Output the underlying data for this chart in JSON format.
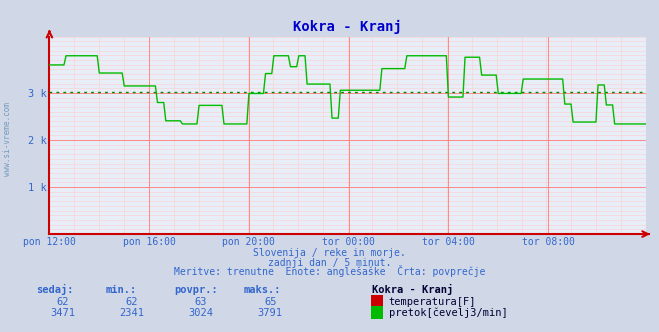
{
  "title": "Kokra - Kranj",
  "title_color": "#0000cc",
  "bg_color": "#d0d8e8",
  "plot_bg_color": "#e8eef8",
  "grid_color_major": "#ff8888",
  "grid_color_minor": "#ffcccc",
  "ylabel_ticks": [
    "1 k",
    "2 k",
    "3 k"
  ],
  "ytick_vals": [
    1000,
    2000,
    3000
  ],
  "ylim": [
    0,
    4200
  ],
  "xlim": [
    0,
    287
  ],
  "x_tick_labels": [
    "pon 12:00",
    "pon 16:00",
    "pon 20:00",
    "tor 00:00",
    "tor 04:00",
    "tor 08:00"
  ],
  "x_tick_positions": [
    0,
    48,
    96,
    144,
    192,
    240
  ],
  "avg_line_val": 3024,
  "avg_line_color": "#008800",
  "flow_color": "#00bb00",
  "temp_color": "#cc0000",
  "flow_min": 2341,
  "flow_max": 3791,
  "flow_avg": 3024,
  "flow_current": 3471,
  "temp_min": 62,
  "temp_max": 65,
  "temp_avg": 63,
  "temp_current": 62,
  "subtitle1": "Slovenija / reke in morje.",
  "subtitle2": "zadnji dan / 5 minut.",
  "subtitle3": "Meritve: trenutne  Enote: anglešaške  Črta: povprečje",
  "text_color": "#3366cc",
  "legend_title": "Kokra - Kranj",
  "legend_color": "#000033",
  "side_text": "www.si-vreme.com",
  "watermark_text": "www.si-vreme.com"
}
